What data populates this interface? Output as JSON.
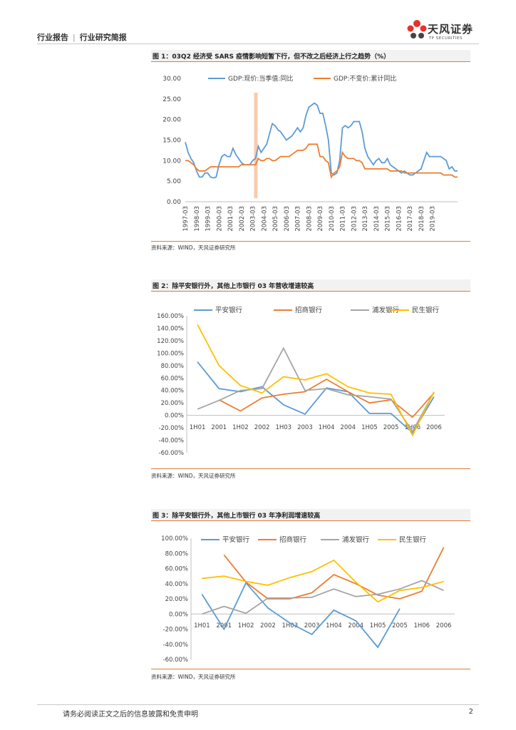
{
  "header": {
    "left": "行业报告",
    "right": "行业研究简报",
    "logo_cn": "天风证券",
    "logo_en": "TF SECURITIES"
  },
  "figures": [
    {
      "title": "图 1：03Q2 经济受 SARS 疫情影响短暂下行，但不改之后经济上行之趋势（%）",
      "source": "资料来源：WIND，天风证券研究所"
    },
    {
      "title": "图 2：除平安银行外，其他上市银行 03 年营收增速较高",
      "source": "资料来源：WIND，天风证券研究所"
    },
    {
      "title": "图 3：除平安银行外，其他上市银行 03 年净利润增速较高",
      "source": "资料来源：WIND，天风证券研究所"
    }
  ],
  "footer": {
    "disclaimer": "请务必阅读正文之后的信息披露和免责申明",
    "page": "2"
  },
  "colors": {
    "blue": "#5b9bd5",
    "orange": "#ed7d31",
    "gray": "#a5a5a5",
    "gold": "#ffc000",
    "highlight": "#f8cbad",
    "accent": "#e07b39"
  },
  "chart_data": [
    {
      "type": "line",
      "title": "图 1：03Q2 经济受 SARS 疫情影响短暂下行，但不改之后经济上行之趋势（%）",
      "ylim": [
        0,
        30
      ],
      "yticks": [
        "0.00",
        "5.00",
        "10.00",
        "15.00",
        "20.00",
        "25.00",
        "30.00"
      ],
      "x_start_year": 1997,
      "x_labels": [
        "1997-03",
        "1998-03",
        "1999-03",
        "2000-03",
        "2001-03",
        "2002-03",
        "2003-03",
        "2004-03",
        "2005-03",
        "2006-03",
        "2007-03",
        "2008-03",
        "2009-03",
        "2010-03",
        "2011-03",
        "2012-03",
        "2013-03",
        "2014-03",
        "2015-03",
        "2016-03",
        "2017-03",
        "2018-03",
        "2019-03"
      ],
      "highlight_quarter": "2003Q2",
      "series": [
        {
          "name": "GDP:现价:当季值:同比",
          "values": [
            14.5,
            12,
            10.5,
            9.5,
            7.5,
            6,
            6,
            7,
            7,
            6,
            5.8,
            6,
            9,
            11,
            11.5,
            11,
            11,
            13,
            11.5,
            10.5,
            9.5,
            9,
            9,
            9,
            10,
            10.5,
            13.5,
            12,
            13,
            14,
            16.5,
            19,
            18.5,
            17.5,
            17,
            16,
            15,
            15.5,
            16,
            17,
            18,
            17,
            18,
            21,
            23,
            23.5,
            24,
            23.5,
            21.5,
            21.5,
            18.5,
            15,
            7,
            6.5,
            7,
            10,
            18,
            18.5,
            18,
            18.5,
            19.5,
            19.5,
            19.5,
            17,
            13,
            11,
            10,
            9,
            10,
            10.5,
            9.5,
            9.5,
            10.5,
            9,
            8.5,
            8,
            7.5,
            7,
            7.5,
            7,
            6.5,
            6.5,
            7,
            7.5,
            8,
            10,
            12,
            11,
            11,
            11,
            11,
            11,
            10.5,
            10,
            8,
            8.5,
            7.5,
            7.5
          ]
        },
        {
          "name": "GDP:不变价:累计同比",
          "values": [
            10,
            10,
            9.5,
            9,
            8,
            7.5,
            7.5,
            7.5,
            8,
            8.5,
            8.5,
            8.5,
            8.5,
            8.5,
            8.5,
            8.5,
            8.5,
            8.5,
            8.5,
            8.5,
            9,
            9,
            9,
            9,
            9,
            9,
            10.5,
            10,
            10,
            10.5,
            10.5,
            10,
            10,
            10.5,
            11,
            11,
            11,
            11,
            11.5,
            12,
            12.5,
            12.5,
            12.5,
            13,
            14,
            14,
            14,
            14,
            11,
            11,
            10,
            9.5,
            6,
            7,
            7.5,
            8.5,
            12,
            11,
            10.5,
            10.5,
            10.5,
            10,
            10,
            9.5,
            8,
            8,
            8,
            8,
            8,
            8,
            8,
            8,
            8,
            7.5,
            7.5,
            7.5,
            7.5,
            7.5,
            7,
            7,
            7,
            7,
            7,
            7,
            7,
            7,
            7,
            7,
            7,
            7,
            7,
            7,
            6.5,
            6.5,
            6.5,
            6.5,
            6,
            6
          ]
        }
      ]
    },
    {
      "type": "line",
      "title": "图 2：除平安银行外，其他上市银行 03 年营收增速较高",
      "categories": [
        "1H01",
        "2001",
        "1H02",
        "2002",
        "1H03",
        "2003",
        "1H04",
        "2004",
        "1H05",
        "2005",
        "1H06",
        "2006"
      ],
      "ylim": [
        -60,
        160
      ],
      "yticks": [
        "-60.00%",
        "-40.00%",
        "-20.00%",
        "0.00%",
        "20.00%",
        "40.00%",
        "60.00%",
        "80.00%",
        "100.00%",
        "120.00%",
        "140.00%",
        "160.00%"
      ],
      "series": [
        {
          "name": "平安银行",
          "values": [
            86,
            43,
            38,
            46,
            17,
            2,
            44,
            38,
            3,
            3,
            -28,
            30
          ]
        },
        {
          "name": "招商银行",
          "values": [
            null,
            25,
            7,
            28,
            34,
            38,
            58,
            38,
            20,
            25,
            -3,
            36
          ]
        },
        {
          "name": "浦发银行",
          "values": [
            10,
            24,
            40,
            43,
            108,
            40,
            43,
            33,
            30,
            26,
            -26,
            37
          ]
        },
        {
          "name": "民生银行",
          "values": [
            146,
            80,
            48,
            36,
            62,
            57,
            67,
            46,
            36,
            34,
            -32,
            38
          ]
        }
      ]
    },
    {
      "type": "line",
      "title": "图 3：除平安银行外，其他上市银行 03 年净利润增速较高",
      "categories": [
        "1H01",
        "2001",
        "1H02",
        "2002",
        "1H03",
        "2003",
        "1H04",
        "2004",
        "1H05",
        "2005",
        "1H06",
        "2006"
      ],
      "ylim": [
        -60,
        100
      ],
      "yticks": [
        "-60.00%",
        "-40.00%",
        "-20.00%",
        "0.00%",
        "20.00%",
        "40.00%",
        "60.00%",
        "80.00%",
        "100.00%"
      ],
      "series": [
        {
          "name": "平安银行",
          "values": [
            26,
            -20,
            41,
            8,
            -12,
            -27,
            5,
            -9,
            -44,
            7,
            null,
            null
          ]
        },
        {
          "name": "招商银行",
          "values": [
            null,
            78,
            42,
            20,
            20,
            28,
            52,
            40,
            25,
            20,
            30,
            88
          ]
        },
        {
          "name": "浦发银行",
          "values": [
            0,
            10,
            1,
            21,
            21,
            22,
            33,
            23,
            26,
            33,
            44,
            31
          ]
        },
        {
          "name": "民生银行",
          "values": [
            47,
            50,
            43,
            38,
            48,
            56,
            71,
            42,
            16,
            31,
            35,
            43
          ]
        }
      ]
    }
  ]
}
